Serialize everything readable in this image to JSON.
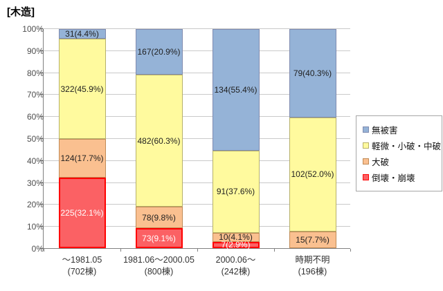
{
  "title": "[木造]",
  "colors": {
    "grid": "#c9c9c9",
    "axis": "#808080",
    "label_dark": "#1f1f1f",
    "label_light": "#ffffff"
  },
  "y_axis": {
    "ticks": [
      "0%",
      "10%",
      "20%",
      "30%",
      "40%",
      "50%",
      "60%",
      "70%",
      "80%",
      "90%",
      "100%"
    ]
  },
  "legend": {
    "items": [
      {
        "label": "無被害",
        "fill": "#95b3d7",
        "border": "#7f8bb0"
      },
      {
        "label": "軽微・小破・中破",
        "fill": "#fffa9e",
        "border": "#b6b06a"
      },
      {
        "label": "大破",
        "fill": "#fac090",
        "border": "#c08a55"
      },
      {
        "label": "倒壊・崩壊",
        "fill": "#fb6164",
        "border": "#ff0000"
      }
    ]
  },
  "chart_data": {
    "type": "bar",
    "subtype": "100%-stacked-column",
    "title": "[木造]",
    "xlabel": "",
    "ylabel": "",
    "ylim": [
      0,
      100
    ],
    "grid": true,
    "legend_position": "right",
    "categories": [
      {
        "period": "～1981.05",
        "count": "(702棟)"
      },
      {
        "period": "1981.06～2000.05",
        "count": "(800棟)"
      },
      {
        "period": "2000.06～",
        "count": "(242棟)"
      },
      {
        "period": "時期不明",
        "count": "(196棟)"
      }
    ],
    "series": [
      {
        "name": "無被害",
        "fill": "#95b3d7",
        "border": "#7f8bb0",
        "text_color": "#1f1f1f",
        "values": [
          31,
          167,
          134,
          79
        ],
        "pcts": [
          4.4,
          20.9,
          55.4,
          40.3
        ],
        "labels": [
          "31(4.4%)",
          "167(20.9%)",
          "134(55.4%)",
          "79(40.3%)"
        ]
      },
      {
        "name": "軽微・小破・中破",
        "fill": "#fffa9e",
        "border": "#b6b06a",
        "text_color": "#1f1f1f",
        "values": [
          322,
          482,
          91,
          102
        ],
        "pcts": [
          45.9,
          60.3,
          37.6,
          52.0
        ],
        "labels": [
          "322(45.9%)",
          "482(60.3%)",
          "91(37.6%)",
          "102(52.0%)"
        ]
      },
      {
        "name": "大破",
        "fill": "#fac090",
        "border": "#c08a55",
        "text_color": "#1f1f1f",
        "values": [
          124,
          78,
          10,
          15
        ],
        "pcts": [
          17.7,
          9.8,
          4.1,
          7.7
        ],
        "labels": [
          "124(17.7%)",
          "78(9.8%)",
          "10(4.1%)",
          "15(7.7%)"
        ]
      },
      {
        "name": "倒壊・崩壊",
        "fill": "#fb6164",
        "border": "#ff0000",
        "text_color": "#ffffff",
        "values": [
          225,
          73,
          7,
          0
        ],
        "pcts": [
          32.1,
          9.1,
          2.9,
          0
        ],
        "labels": [
          "225(32.1%)",
          "73(9.1%)",
          "7(2.9%)",
          ""
        ]
      }
    ]
  }
}
